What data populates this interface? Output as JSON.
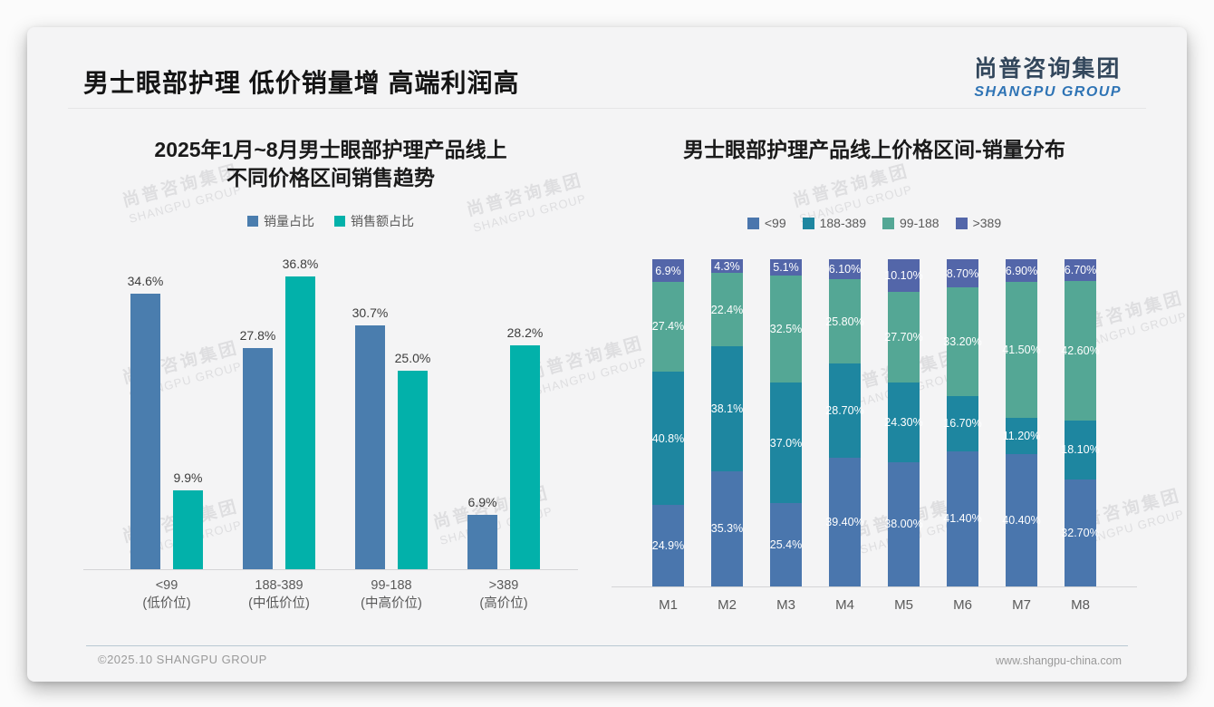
{
  "slide": {
    "title": "男士眼部护理 低价销量增 高端利润高",
    "logo": {
      "cn": "尚普咨询集团",
      "en": "SHANGPU GROUP"
    },
    "watermark": {
      "cn": "尚普咨询集团",
      "en": "SHANGPU GROUP"
    },
    "footer": {
      "left": "©2025.10 SHANGPU GROUP",
      "right": "www.shangpu-china.com"
    }
  },
  "colors": {
    "volume_blue": "#4a7dae",
    "sales_teal": "#02b1aa",
    "stack_lt99": "#4a76ad",
    "stack_188_389": "#1e86a0",
    "stack_99_188": "#54a795",
    "stack_gt389": "#5366a9"
  },
  "chart_data": [
    {
      "type": "bar",
      "title": "2025年1月~8月男士眼部护理产品线上 不同价格区间销售趋势",
      "title_lines": [
        "2025年1月~8月男士眼部护理产品线上",
        "不同价格区间销售趋势"
      ],
      "categories": [
        {
          "range": "<99",
          "note": "(低价位)"
        },
        {
          "range": "188-389",
          "note": "(中低价位)"
        },
        {
          "range": "99-188",
          "note": "(中高价位)"
        },
        {
          "range": ">389",
          "note": "(高价位)"
        }
      ],
      "series": [
        {
          "name": "销量占比",
          "color": "#4a7dae",
          "values": [
            34.6,
            27.8,
            30.7,
            6.9
          ],
          "labels": [
            "34.6%",
            "27.8%",
            "30.7%",
            "6.9%"
          ]
        },
        {
          "name": "销售额占比",
          "color": "#02b1aa",
          "values": [
            9.9,
            36.8,
            25.0,
            28.2
          ],
          "labels": [
            "9.9%",
            "36.8%",
            "25.0%",
            "28.2%"
          ]
        }
      ],
      "ylim": [
        0,
        40
      ],
      "grid": false,
      "legend_position": "top"
    },
    {
      "type": "bar",
      "stacked": true,
      "title": "男士眼部护理产品线上价格区间-销量分布",
      "categories": [
        "M1",
        "M2",
        "M3",
        "M4",
        "M5",
        "M6",
        "M7",
        "M8"
      ],
      "series": [
        {
          "name": "<99",
          "color": "#4a76ad",
          "values": [
            24.9,
            35.3,
            25.4,
            39.4,
            38.0,
            41.4,
            40.4,
            32.7
          ],
          "labels": [
            "24.9%",
            "35.3%",
            "25.4%",
            "39.40%",
            "38.00%",
            "41.40%",
            "40.40%",
            "32.70%"
          ]
        },
        {
          "name": "188-389",
          "color": "#1e86a0",
          "values": [
            40.8,
            38.1,
            37.0,
            28.7,
            24.3,
            16.7,
            11.2,
            18.1
          ],
          "labels": [
            "40.8%",
            "38.1%",
            "37.0%",
            "28.70%",
            "24.30%",
            "16.70%",
            "11.20%",
            "18.10%"
          ]
        },
        {
          "name": "99-188",
          "color": "#54a795",
          "values": [
            27.4,
            22.4,
            32.5,
            25.8,
            27.7,
            33.2,
            41.5,
            42.6
          ],
          "labels": [
            "27.4%",
            "22.4%",
            "32.5%",
            "25.80%",
            "27.70%",
            "33.20%",
            "41.50%",
            "42.60%"
          ]
        },
        {
          "name": ">389",
          "color": "#5366a9",
          "values": [
            6.9,
            4.3,
            5.1,
            6.1,
            10.1,
            8.7,
            6.9,
            6.7
          ],
          "labels": [
            "6.9%",
            "4.3%",
            "5.1%",
            "6.10%",
            "10.10%",
            "8.70%",
            "6.90%",
            "6.70%"
          ]
        }
      ],
      "ylim": [
        0,
        100
      ],
      "grid": false,
      "legend_position": "top"
    }
  ]
}
